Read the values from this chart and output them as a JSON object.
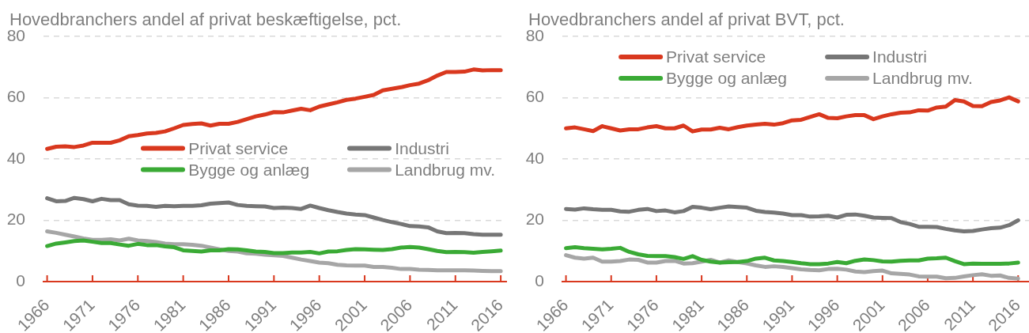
{
  "chart_data": [
    {
      "type": "line",
      "title": "Hovedbranchers andel af privat beskæftigelse, pct.",
      "x": [
        1966,
        1967,
        1968,
        1969,
        1970,
        1971,
        1972,
        1973,
        1974,
        1975,
        1976,
        1977,
        1978,
        1979,
        1980,
        1981,
        1982,
        1983,
        1984,
        1985,
        1986,
        1987,
        1988,
        1989,
        1990,
        1991,
        1992,
        1993,
        1994,
        1995,
        1996,
        1997,
        1998,
        1999,
        2000,
        2001,
        2002,
        2003,
        2004,
        2005,
        2006,
        2007,
        2008,
        2009,
        2010,
        2011,
        2012,
        2013,
        2014,
        2015,
        2016
      ],
      "xlim": [
        1965.6,
        2016.6
      ],
      "xticks": [
        1966,
        1971,
        1976,
        1981,
        1986,
        1991,
        1996,
        2001,
        2006,
        2011,
        2016
      ],
      "ylim": [
        0,
        80
      ],
      "yticks": [
        0,
        20,
        40,
        60,
        80
      ],
      "grid": "y",
      "legend": "right",
      "series": [
        {
          "name": "Privat service",
          "color": "#d9381e",
          "values": [
            43.3,
            44.0,
            44.1,
            43.9,
            44.4,
            45.3,
            45.3,
            45.3,
            46.1,
            47.4,
            47.8,
            48.3,
            48.5,
            49.0,
            50.0,
            51.1,
            51.4,
            51.6,
            50.9,
            51.5,
            51.5,
            52.1,
            53.0,
            53.9,
            54.5,
            55.3,
            55.2,
            55.8,
            56.4,
            55.9,
            57.1,
            57.8,
            58.5,
            59.3,
            59.7,
            60.3,
            60.9,
            62.4,
            62.9,
            63.4,
            64.1,
            64.6,
            65.7,
            67.2,
            68.4,
            68.4,
            68.5,
            69.2,
            68.9,
            69.0,
            69.0
          ]
        },
        {
          "name": "Industri",
          "color": "#767676",
          "values": [
            27.2,
            26.2,
            26.3,
            27.3,
            26.9,
            26.2,
            27.0,
            26.6,
            26.6,
            25.2,
            24.8,
            24.7,
            24.4,
            24.7,
            24.6,
            24.7,
            24.7,
            24.9,
            25.4,
            25.6,
            25.8,
            25.0,
            24.7,
            24.6,
            24.5,
            24.0,
            24.1,
            24.0,
            23.7,
            24.8,
            24.0,
            23.3,
            22.7,
            22.2,
            21.9,
            21.7,
            20.9,
            20.1,
            19.4,
            18.8,
            18.1,
            18.0,
            17.7,
            16.4,
            15.8,
            15.9,
            15.8,
            15.5,
            15.3,
            15.3,
            15.3
          ]
        },
        {
          "name": "Bygge og anlæg",
          "color": "#3aaa35",
          "values": [
            11.6,
            12.4,
            12.8,
            13.2,
            13.4,
            13.0,
            12.6,
            12.6,
            12.1,
            11.7,
            12.3,
            11.9,
            11.9,
            11.5,
            11.2,
            10.2,
            10.0,
            9.8,
            10.2,
            10.2,
            10.6,
            10.5,
            10.2,
            9.8,
            9.7,
            9.3,
            9.3,
            9.5,
            9.5,
            9.7,
            9.2,
            9.8,
            9.9,
            10.3,
            10.6,
            10.5,
            10.4,
            10.3,
            10.6,
            11.1,
            11.3,
            11.1,
            10.6,
            10.0,
            9.6,
            9.7,
            9.6,
            9.4,
            9.7,
            9.9,
            10.1
          ]
        },
        {
          "name": "Landbrug mv.",
          "color": "#a6a6a6",
          "values": [
            16.4,
            15.9,
            15.3,
            14.7,
            14.1,
            13.6,
            13.6,
            13.8,
            13.4,
            14.0,
            13.4,
            13.2,
            12.9,
            12.4,
            12.2,
            12.2,
            12.0,
            11.7,
            11.1,
            10.5,
            10.0,
            9.8,
            9.2,
            9.1,
            8.8,
            8.6,
            8.4,
            7.8,
            7.2,
            6.7,
            6.2,
            6.0,
            5.5,
            5.3,
            5.2,
            5.2,
            4.8,
            4.8,
            4.5,
            4.1,
            4.1,
            3.9,
            3.8,
            3.7,
            3.7,
            3.7,
            3.7,
            3.6,
            3.5,
            3.4,
            3.4
          ]
        }
      ]
    },
    {
      "type": "line",
      "title": "Hovedbranchers andel af privat BVT, pct.",
      "x": [
        1966,
        1967,
        1968,
        1969,
        1970,
        1971,
        1972,
        1973,
        1974,
        1975,
        1976,
        1977,
        1978,
        1979,
        1980,
        1981,
        1982,
        1983,
        1984,
        1985,
        1986,
        1987,
        1988,
        1989,
        1990,
        1991,
        1992,
        1993,
        1994,
        1995,
        1996,
        1997,
        1998,
        1999,
        2000,
        2001,
        2002,
        2003,
        2004,
        2005,
        2006,
        2007,
        2008,
        2009,
        2010,
        2011,
        2012,
        2013,
        2014,
        2015,
        2016
      ],
      "xlim": [
        1965.6,
        2017.2
      ],
      "xticks": [
        1966,
        1971,
        1976,
        1981,
        1986,
        1991,
        1996,
        2001,
        2006,
        2011,
        2016
      ],
      "ylim": [
        0,
        80
      ],
      "yticks": [
        0,
        20,
        40,
        60,
        80
      ],
      "grid": "y",
      "legend": "top",
      "series": [
        {
          "name": "Privat service",
          "color": "#d9381e",
          "values": [
            50.0,
            50.3,
            49.7,
            49.1,
            50.7,
            50.0,
            49.3,
            49.7,
            49.7,
            50.3,
            50.7,
            50.0,
            50.0,
            50.9,
            49.0,
            49.6,
            49.6,
            50.2,
            49.7,
            50.4,
            50.9,
            51.2,
            51.5,
            51.2,
            51.7,
            52.6,
            52.8,
            53.7,
            54.6,
            53.4,
            53.3,
            53.9,
            54.3,
            54.3,
            53.0,
            53.9,
            54.6,
            55.1,
            55.2,
            55.9,
            55.8,
            56.8,
            57.1,
            59.2,
            58.8,
            57.3,
            57.2,
            58.6,
            59.1,
            60.1,
            58.8
          ]
        },
        {
          "name": "Industri",
          "color": "#767676",
          "values": [
            23.7,
            23.5,
            23.9,
            23.6,
            23.4,
            23.4,
            22.9,
            22.8,
            23.4,
            23.7,
            23.0,
            23.2,
            22.6,
            23.0,
            24.4,
            24.1,
            23.6,
            24.1,
            24.5,
            24.3,
            24.1,
            23.1,
            22.7,
            22.5,
            22.2,
            21.7,
            21.7,
            21.2,
            21.3,
            21.5,
            20.9,
            21.8,
            21.9,
            21.5,
            20.9,
            20.8,
            20.7,
            19.4,
            18.8,
            17.9,
            17.9,
            17.8,
            17.2,
            16.7,
            16.4,
            16.5,
            17.0,
            17.4,
            17.6,
            18.4,
            20.0
          ]
        },
        {
          "name": "Bygge og anlæg",
          "color": "#3aaa35",
          "values": [
            10.9,
            11.2,
            10.9,
            10.7,
            10.5,
            10.7,
            11.0,
            9.7,
            8.9,
            8.4,
            8.3,
            8.3,
            8.0,
            7.4,
            8.3,
            7.1,
            6.5,
            6.2,
            6.3,
            6.4,
            6.7,
            7.5,
            7.8,
            6.9,
            6.7,
            6.4,
            6.0,
            5.7,
            5.7,
            5.9,
            6.4,
            6.0,
            6.8,
            7.2,
            7.0,
            6.6,
            6.5,
            6.8,
            6.9,
            6.9,
            7.5,
            7.6,
            7.8,
            6.7,
            5.7,
            5.9,
            5.8,
            5.8,
            5.8,
            5.9,
            6.2
          ]
        },
        {
          "name": "Landbrug mv.",
          "color": "#a6a6a6",
          "values": [
            8.6,
            7.8,
            7.5,
            7.8,
            6.5,
            6.5,
            6.7,
            7.2,
            7.1,
            6.2,
            6.2,
            6.7,
            6.8,
            5.9,
            6.0,
            6.5,
            7.1,
            6.2,
            6.9,
            6.4,
            5.9,
            5.3,
            4.8,
            5.0,
            4.8,
            4.4,
            4.0,
            3.8,
            3.7,
            4.1,
            4.2,
            3.9,
            3.3,
            3.1,
            3.4,
            3.6,
            2.7,
            2.5,
            2.3,
            1.7,
            1.6,
            1.6,
            1.1,
            1.2,
            1.7,
            2.1,
            2.4,
            1.9,
            2.0,
            1.2,
            1.0
          ]
        }
      ]
    }
  ]
}
